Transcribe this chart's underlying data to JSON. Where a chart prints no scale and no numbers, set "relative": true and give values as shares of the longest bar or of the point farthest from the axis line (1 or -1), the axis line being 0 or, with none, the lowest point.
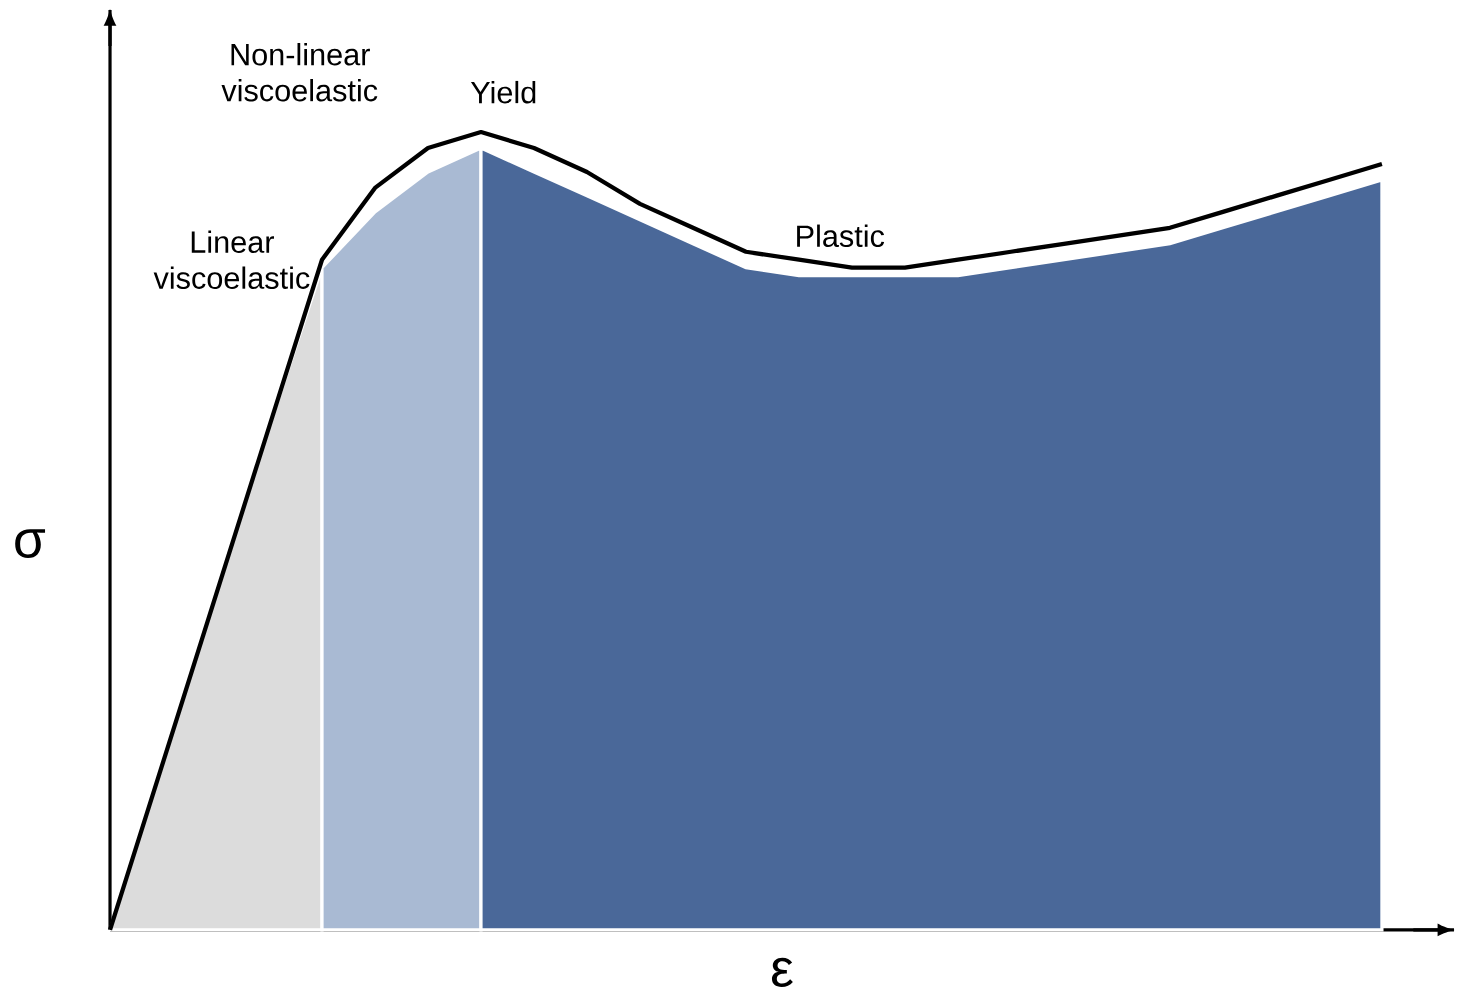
{
  "chart_data": {
    "type": "line",
    "relative": true,
    "xlabel": "ε",
    "ylabel": "σ",
    "categories": [
      null,
      null,
      null,
      null,
      null,
      null,
      null,
      null,
      null,
      null,
      null,
      null,
      null,
      null,
      null,
      null,
      null,
      null,
      null,
      null,
      null,
      null,
      null,
      null,
      null
    ],
    "series": [
      {
        "type": "area",
        "color": "#dcdcdc",
        "values": [
          0,
          0.21,
          0.42,
          0.63,
          0.83,
          null,
          null,
          null,
          null,
          null,
          null,
          null,
          null,
          null,
          null,
          null,
          null,
          null,
          null,
          null,
          null,
          null,
          null,
          null,
          null
        ]
      },
      {
        "type": "area",
        "color": "#a9bad3",
        "values": [
          null,
          null,
          null,
          null,
          0.83,
          0.9,
          0.95,
          0.98,
          null,
          null,
          null,
          null,
          null,
          null,
          null,
          null,
          null,
          null,
          null,
          null,
          null,
          null,
          null,
          null,
          null
        ]
      },
      {
        "type": "area",
        "color": "#4a6899",
        "values": [
          null,
          null,
          null,
          null,
          null,
          null,
          null,
          0.98,
          0.95,
          0.92,
          0.89,
          0.86,
          0.83,
          0.82,
          0.82,
          0.82,
          0.82,
          0.83,
          0.84,
          0.85,
          0.86,
          0.88,
          0.9,
          0.92,
          0.94
        ]
      },
      {
        "color": "#000000",
        "values": [
          0,
          0.21,
          0.42,
          0.63,
          0.84,
          0.93,
          0.98,
          1,
          0.98,
          0.95,
          0.91,
          0.88,
          0.85,
          0.84,
          0.83,
          0.83,
          0.84,
          0.85,
          0.86,
          0.87,
          0.88,
          0.9,
          0.92,
          0.94,
          0.96
        ]
      }
    ],
    "annotations": [
      "Non-linear viscoelastic",
      "Linear viscoelastic",
      "Yield",
      "Plastic"
    ]
  }
}
